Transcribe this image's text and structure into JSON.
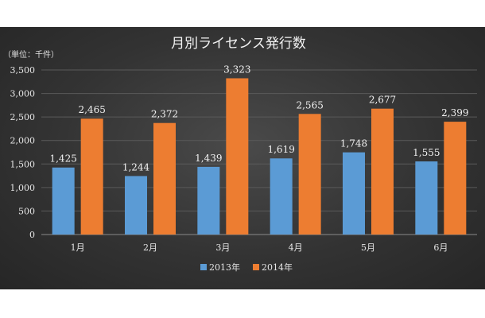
{
  "chart_data": {
    "type": "bar",
    "title": "月別ライセンス発行数",
    "unit_label": "（単位：千件）",
    "categories": [
      "1月",
      "2月",
      "3月",
      "4月",
      "5月",
      "6月"
    ],
    "series": [
      {
        "name": "2013年",
        "values": [
          1425,
          1244,
          1439,
          1619,
          1748,
          1555
        ],
        "color": "#5b9bd5"
      },
      {
        "name": "2014年",
        "values": [
          2465,
          2372,
          3323,
          2565,
          2677,
          2399
        ],
        "color": "#ed7d31"
      }
    ],
    "value_labels": [
      [
        "1,425",
        "1,244",
        "1,439",
        "1,619",
        "1,748",
        "1,555"
      ],
      [
        "2,465",
        "2,372",
        "3,323",
        "2,565",
        "2,677",
        "2,399"
      ]
    ],
    "ylim": [
      0,
      3500
    ],
    "yticks": [
      0,
      500,
      1000,
      1500,
      2000,
      2500,
      3000,
      3500
    ],
    "ytick_labels": [
      "0",
      "500",
      "1,000",
      "1,500",
      "2,000",
      "2,500",
      "3,000",
      "3,500"
    ],
    "grid": true,
    "legend_position": "bottom"
  }
}
